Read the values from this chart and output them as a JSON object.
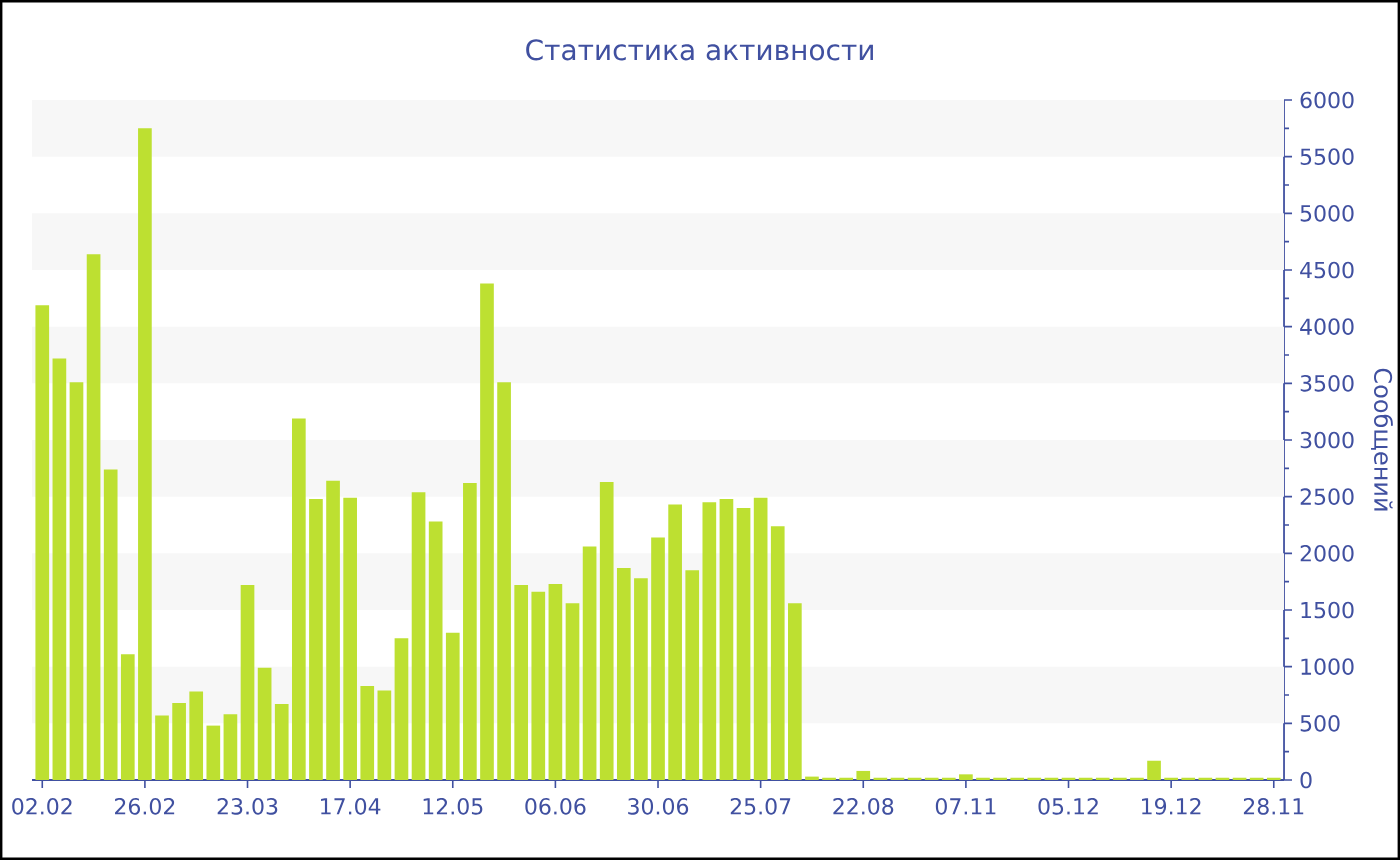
{
  "chart_data": {
    "type": "bar",
    "title": "Статистика активности",
    "ylabel": "Сообщений",
    "categories": [
      "02.02",
      null,
      null,
      null,
      null,
      null,
      "26.02",
      null,
      null,
      null,
      null,
      null,
      "23.03",
      null,
      null,
      null,
      null,
      null,
      "17.04",
      null,
      null,
      null,
      null,
      null,
      "12.05",
      null,
      null,
      null,
      null,
      null,
      "06.06",
      null,
      null,
      null,
      null,
      null,
      "30.06",
      null,
      null,
      null,
      null,
      null,
      "25.07",
      null,
      null,
      null,
      null,
      null,
      "22.08",
      null,
      null,
      null,
      null,
      null,
      "07.11",
      null,
      null,
      null,
      null,
      null,
      "05.12",
      null,
      null,
      null,
      null,
      null,
      "19.12",
      null,
      null,
      null,
      null,
      null,
      "28.11"
    ],
    "values": [
      4190,
      3720,
      3510,
      4640,
      2740,
      1110,
      5750,
      570,
      680,
      780,
      480,
      580,
      1720,
      990,
      670,
      3190,
      2480,
      2640,
      2490,
      830,
      790,
      1250,
      2540,
      2280,
      1300,
      2620,
      4380,
      3510,
      1720,
      1660,
      1730,
      1560,
      2060,
      2630,
      1870,
      1780,
      2140,
      2430,
      1850,
      2450,
      2480,
      2400,
      2490,
      2240,
      1560,
      30,
      20,
      20,
      80,
      20,
      20,
      20,
      20,
      20,
      50,
      20,
      20,
      20,
      20,
      20,
      20,
      20,
      20,
      20,
      20,
      170,
      20,
      20,
      20,
      20,
      20,
      20,
      20
    ],
    "color": "#bde031",
    "ylim": [
      0,
      6000
    ],
    "yticks": [
      0,
      500,
      1000,
      1500,
      2000,
      2500,
      3000,
      3500,
      4000,
      4500,
      5000,
      5500,
      6000
    ],
    "bands": [
      {
        "axis": "y",
        "from": 500,
        "to": 1000,
        "color": "#f7f7f7"
      },
      {
        "axis": "y",
        "from": 1500,
        "to": 2000,
        "color": "#f7f7f7"
      },
      {
        "axis": "y",
        "from": 2500,
        "to": 3000,
        "color": "#f7f7f7"
      },
      {
        "axis": "y",
        "from": 3500,
        "to": 4000,
        "color": "#f7f7f7"
      },
      {
        "axis": "y",
        "from": 4500,
        "to": 5000,
        "color": "#f7f7f7"
      },
      {
        "axis": "y",
        "from": 5500,
        "to": 6000,
        "color": "#f7f7f7"
      }
    ]
  }
}
